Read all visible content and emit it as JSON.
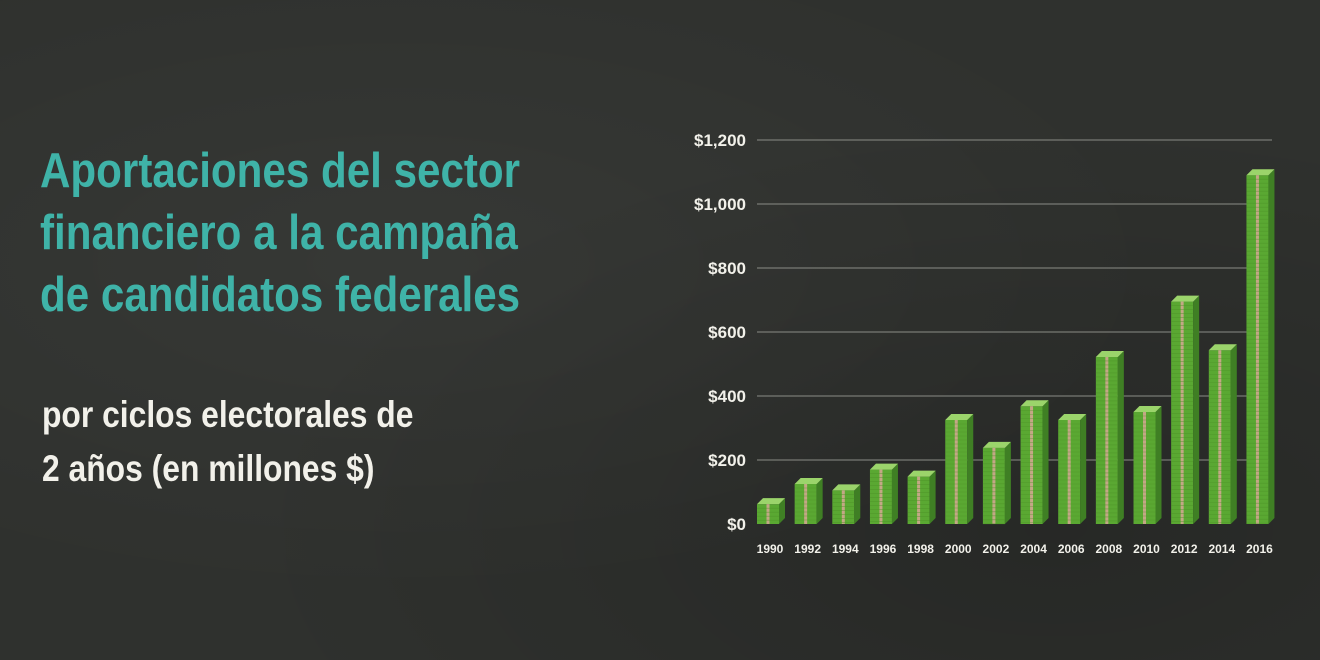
{
  "header": {
    "title": "Aportaciones del sector\nfinanciero a la campaña\nde candidatos federales",
    "subtitle": "por ciclos electorales de\n2 años (en millones $)"
  },
  "colors": {
    "title": "#3fb3a8",
    "bar_front": "#5aa832",
    "bar_side": "#3f7f24",
    "bar_top": "#9bd46b",
    "gridline": "#8a8c86",
    "band": "#e7a7a2"
  },
  "chart_data": {
    "type": "bar",
    "categories": [
      "1990",
      "1992",
      "1994",
      "1996",
      "1998",
      "2000",
      "2002",
      "2004",
      "2006",
      "2008",
      "2010",
      "2012",
      "2014",
      "2016"
    ],
    "values": [
      62,
      125,
      105,
      170,
      148,
      325,
      238,
      368,
      325,
      522,
      350,
      695,
      543,
      1090
    ],
    "ylim": [
      0,
      1200
    ],
    "yticks": [
      0,
      200,
      400,
      600,
      800,
      1000,
      1200
    ],
    "ytick_labels": [
      "$0",
      "$200",
      "$400",
      "$600",
      "$800",
      "$1,000",
      "$1,200"
    ],
    "grid": true,
    "legend": false
  }
}
